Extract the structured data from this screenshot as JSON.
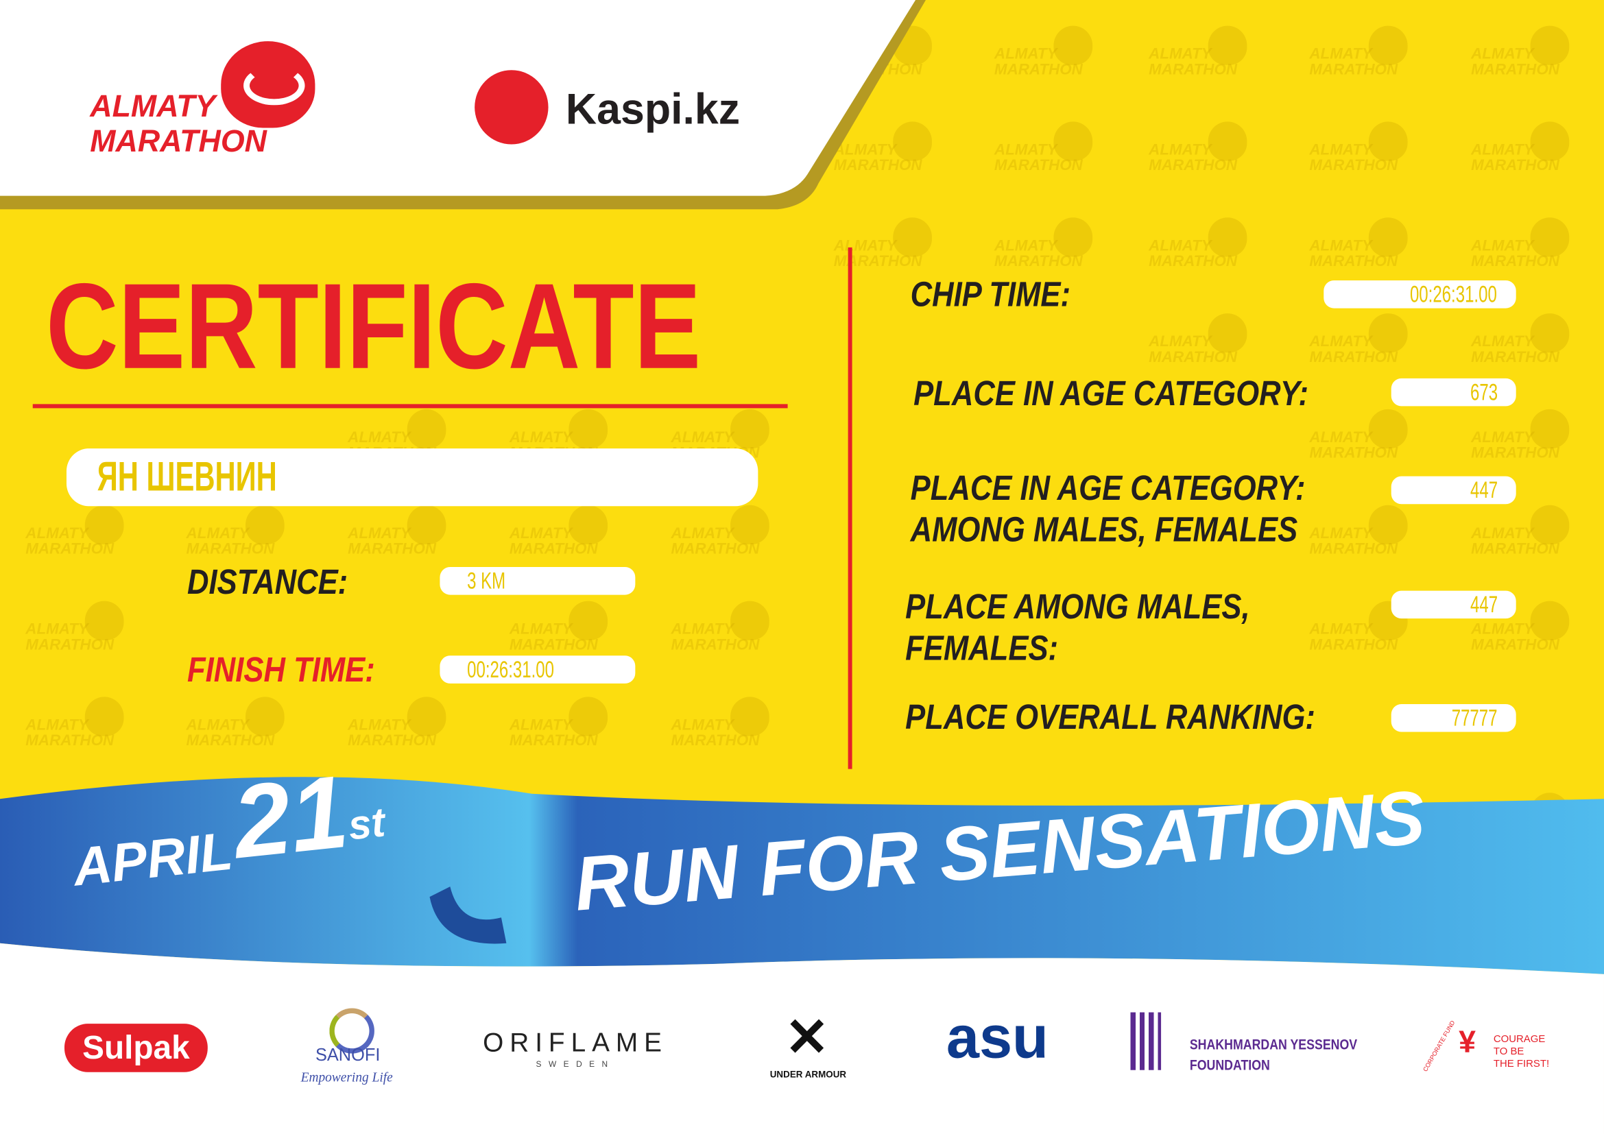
{
  "header": {
    "event_logo_line1": "ALMATY",
    "event_logo_line2": "MARATHON",
    "sponsor_logo": "Kaspi.kz"
  },
  "watermark": {
    "line1": "ALMATY",
    "line2": "MARATHON"
  },
  "certificate": {
    "title": "CERTIFICATE",
    "participant_name": "ЯН ШЕВНИН",
    "distance_label": "DISTANCE:",
    "distance_value": "3 KM",
    "finish_time_label": "FINISH TIME:",
    "finish_time_value": "00:26:31.00",
    "chip_time_label": "CHIP TIME:",
    "chip_time_value": "00:26:31.00",
    "age_category_label": "PLACE IN AGE CATEGORY:",
    "age_category_value": "673",
    "age_category_gender_label_1": "PLACE IN AGE CATEGORY:",
    "age_category_gender_label_2": "AMONG MALES, FEMALES",
    "age_category_gender_value": "447",
    "gender_label_1": "PLACE AMONG MALES,",
    "gender_label_2": "FEMALES:",
    "gender_value": "447",
    "overall_label": "PLACE OVERALL RANKING:",
    "overall_value": "77777"
  },
  "ribbon": {
    "month": "APRIL",
    "day": "21",
    "suffix": "st",
    "slogan": "RUN FOR SENSATIONS"
  },
  "sponsors": {
    "sulpak": "Sulpak",
    "sanofi": "SANOFI",
    "sanofi_tagline": "Empowering Life",
    "oriflame": "ORIFLAME",
    "oriflame_sub": "SWEDEN",
    "under_armour": "UNDER ARMOUR",
    "asu": "asu",
    "yessenov_1": "SHAKHMARDAN YESSENOV",
    "yessenov_2": "FOUNDATION",
    "courage_arc": "CORPORATE FUND",
    "courage_1": "COURAGE",
    "courage_2": "TO BE",
    "courage_3": "THE FIRST!"
  },
  "colors": {
    "background": "#FCDD0F",
    "red": "#E5202A",
    "blue": "#2D6EC0",
    "light_blue": "#4FB8EC",
    "value_text": "#E8C500",
    "label_text": "#231F20"
  }
}
